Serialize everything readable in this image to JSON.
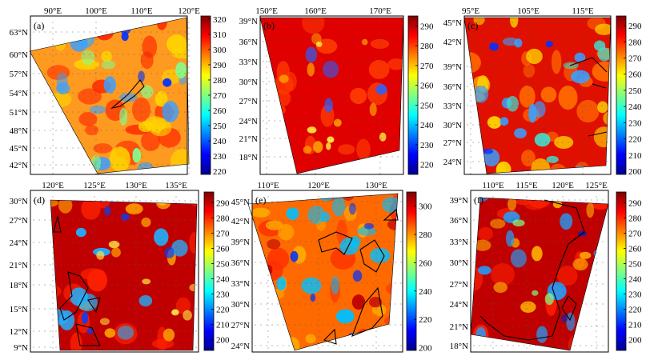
{
  "colors": {
    "colormap": [
      "#00008f",
      "#0000ff",
      "#0080ff",
      "#00ffff",
      "#80ff80",
      "#ffff00",
      "#ff8000",
      "#ff0000",
      "#800000"
    ],
    "frame": "#000000",
    "grid_dots": "#555555",
    "coastline": "#000000",
    "background": "#ffffff"
  },
  "panels": [
    {
      "label": "(a)",
      "lon_labels": [
        "90°E",
        "100°E",
        "110°E",
        "120°E"
      ],
      "lat_labels": [
        "63°N",
        "60°N",
        "57°N",
        "54°N",
        "51°N",
        "48°N",
        "45°N",
        "42°N"
      ],
      "colorbar_ticks": [
        "320",
        "310",
        "300",
        "290",
        "280",
        "270",
        "260",
        "250",
        "240",
        "230",
        "220"
      ],
      "colorbar_range": [
        218,
        322
      ]
    },
    {
      "label": "(b)",
      "lon_labels": [
        "150°E",
        "160°E",
        "170°E"
      ],
      "lat_labels": [
        "39°N",
        "36°N",
        "33°N",
        "30°N",
        "27°N",
        "24°N",
        "21°N",
        "18°N"
      ],
      "colorbar_ticks": [
        "290",
        "280",
        "270",
        "260",
        "250",
        "240",
        "230",
        "220"
      ],
      "colorbar_range": [
        215,
        295
      ]
    },
    {
      "label": "(c)",
      "lon_labels": [
        "95°E",
        "105°E",
        "115°E"
      ],
      "lat_labels": [
        "45°N",
        "42°N",
        "39°N",
        "36°N",
        "33°N",
        "30°N",
        "27°N",
        "24°N"
      ],
      "colorbar_ticks": [
        "290",
        "280",
        "270",
        "260",
        "250",
        "240",
        "230",
        "220",
        "210",
        "200"
      ],
      "colorbar_range": [
        198,
        296
      ]
    },
    {
      "label": "(d)",
      "lon_labels": [
        "120°E",
        "125°E",
        "130°E",
        "135°E"
      ],
      "lat_labels": [
        "30°N",
        "27°N",
        "24°N",
        "21°N",
        "18°N",
        "15°N",
        "12°N",
        "9°N"
      ],
      "colorbar_ticks": [
        "290",
        "280",
        "270",
        "260",
        "250",
        "240",
        "230",
        "220",
        "210",
        "200"
      ],
      "colorbar_range": [
        193,
        297
      ]
    },
    {
      "label": "(e)",
      "lon_labels": [
        "110°E",
        "120°E",
        "130°E"
      ],
      "lat_labels": [
        "45°N",
        "42°N",
        "39°N",
        "36°N",
        "33°N",
        "30°N",
        "27°N",
        "24°N"
      ],
      "colorbar_ticks": [
        "300",
        "280",
        "260",
        "240",
        "220",
        "200"
      ],
      "colorbar_range": [
        198,
        310
      ]
    },
    {
      "label": "(f)",
      "lon_labels": [
        "110°E",
        "115°E",
        "120°E",
        "125°E"
      ],
      "lat_labels": [
        "39°N",
        "36°N",
        "33°N",
        "30°N",
        "27°N",
        "24°N",
        "21°N",
        "18°N"
      ],
      "colorbar_ticks": [
        "290",
        "280",
        "270",
        "260",
        "250",
        "240",
        "230",
        "220",
        "210",
        "200"
      ],
      "colorbar_range": [
        193,
        297
      ]
    }
  ]
}
